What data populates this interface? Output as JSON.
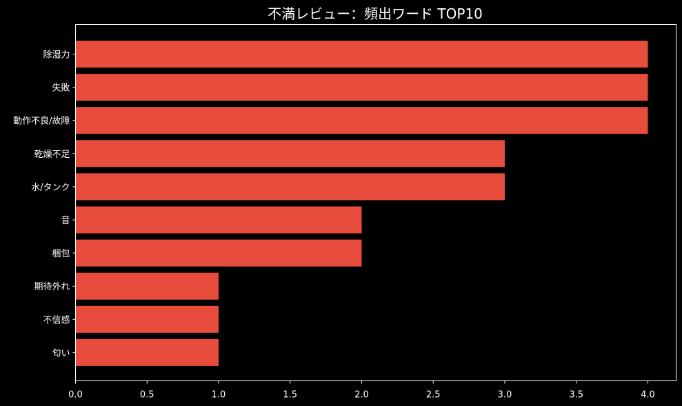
{
  "colors": {
    "background": "#000000",
    "bar": "#e74c3c",
    "text": "#ffffff",
    "axis": "#ffffff"
  },
  "chart_data": {
    "type": "bar",
    "orientation": "horizontal",
    "title": "不満レビュー：頻出ワード TOP10",
    "xlabel": "",
    "ylabel": "",
    "categories": [
      "除湿力",
      "失敗",
      "動作不良/故障",
      "乾燥不足",
      "水/タンク",
      "音",
      "梱包",
      "期待外れ",
      "不信感",
      "匂い"
    ],
    "values": [
      4,
      4,
      4,
      3,
      3,
      2,
      2,
      1,
      1,
      1
    ],
    "xlim": [
      0,
      4.2
    ],
    "xticks": [
      0.0,
      0.5,
      1.0,
      1.5,
      2.0,
      2.5,
      3.0,
      3.5,
      4.0
    ],
    "xtick_labels": [
      "0.0",
      "0.5",
      "1.0",
      "1.5",
      "2.0",
      "2.5",
      "3.0",
      "3.5",
      "4.0"
    ],
    "grid": false,
    "legend": "none"
  }
}
